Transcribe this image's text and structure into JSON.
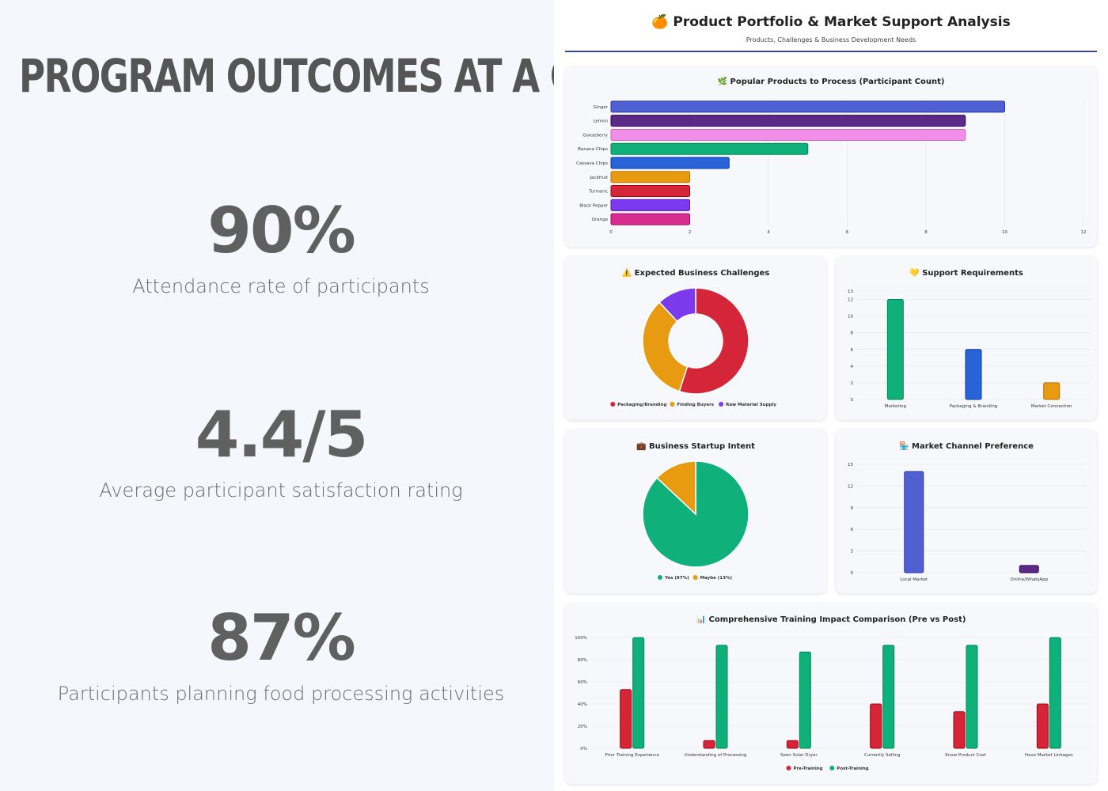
{
  "left": {
    "heading": "PROGRAM OUTCOMES AT A GLANCE",
    "stats": [
      {
        "value": "90%",
        "label": "Attendance rate of participants"
      },
      {
        "value": "4.4/5",
        "label": "Average participant satisfaction rating"
      },
      {
        "value": "87%",
        "label": "Participants planning food processing activities"
      }
    ]
  },
  "header": {
    "icon": "🍊",
    "title": "Product Portfolio & Market Support Analysis",
    "subtitle": "Products, Challenges & Business Development Needs"
  },
  "colors": {
    "blue": "#5060d0",
    "purple": "#5b2a86",
    "pink": "#f08ee8",
    "green": "#10b07a",
    "royal": "#2a63d6",
    "orange": "#e89a10",
    "red": "#d42638",
    "violet": "#7c3aed",
    "magenta": "#d62d8f"
  },
  "chart_data": [
    {
      "id": "products",
      "type": "bar",
      "orientation": "horizontal",
      "icon": "🌿",
      "title": "Popular Products to Process (Participant Count)",
      "categories": [
        "Ginger",
        "Lemon",
        "Gooseberry",
        "Banana Chips",
        "Cassava Chips",
        "Jackfruit",
        "Turmeric",
        "Black Pepper",
        "Orange"
      ],
      "values": [
        10,
        9,
        9,
        5,
        3,
        2,
        2,
        2,
        2
      ],
      "bar_colors": [
        "#5060d0",
        "#5b2a86",
        "#f08ee8",
        "#10b07a",
        "#2a63d6",
        "#e89a10",
        "#d42638",
        "#7c3aed",
        "#d62d8f"
      ],
      "xlim": [
        0,
        12
      ],
      "xticks": [
        "0",
        "2",
        "4",
        "6",
        "8",
        "10",
        "12"
      ]
    },
    {
      "id": "challenges",
      "type": "pie",
      "variant": "doughnut",
      "icon": "⚠️",
      "title": "Expected Business Challenges",
      "labels": [
        "Packaging/Branding",
        "Finding Buyers",
        "Raw Material Supply"
      ],
      "values": [
        55,
        33,
        12
      ],
      "colors": [
        "#d42638",
        "#e89a10",
        "#7c3aed"
      ]
    },
    {
      "id": "support",
      "type": "bar",
      "icon": "💛",
      "title": "Support Requirements",
      "categories": [
        "Marketing",
        "Packaging & Branding",
        "Market Connection"
      ],
      "values": [
        12,
        6,
        2
      ],
      "bar_colors": [
        "#10b07a",
        "#2a63d6",
        "#e89a10"
      ],
      "ylim": [
        0,
        13
      ],
      "yticks": [
        "0",
        "2",
        "4",
        "6",
        "8",
        "10",
        "12",
        "13"
      ]
    },
    {
      "id": "startup",
      "type": "pie",
      "icon": "💼",
      "title": "Business Startup Intent",
      "labels": [
        "Yes (87%)",
        "Maybe (13%)"
      ],
      "values": [
        87,
        13
      ],
      "colors": [
        "#10b07a",
        "#e89a10"
      ]
    },
    {
      "id": "channel",
      "type": "bar",
      "icon": "🏪",
      "title": "Market Channel Preference",
      "categories": [
        "Local Market",
        "Online/WhatsApp"
      ],
      "values": [
        14,
        1
      ],
      "bar_colors": [
        "#5060d0",
        "#5b2a86"
      ],
      "ylim": [
        0,
        15
      ],
      "yticks": [
        "0",
        "3",
        "6",
        "9",
        "12",
        "15"
      ]
    },
    {
      "id": "impact",
      "type": "bar",
      "icon": "📊",
      "title": "Comprehensive Training Impact Comparison (Pre vs Post)",
      "categories": [
        "Prior Training Experience",
        "Understanding of Processing",
        "Seen Solar Dryer",
        "Currently Selling",
        "Know Product Cost",
        "Have Market Linkages"
      ],
      "series": [
        {
          "name": "Pre-Training",
          "color": "#d42638",
          "values": [
            53,
            7,
            7,
            40,
            33,
            40
          ]
        },
        {
          "name": "Post-Training",
          "color": "#10b07a",
          "values": [
            100,
            93,
            87,
            93,
            93,
            100
          ]
        }
      ],
      "ylim": [
        0,
        100
      ],
      "yticks": [
        "0%",
        "20%",
        "40%",
        "60%",
        "80%",
        "100%"
      ]
    }
  ]
}
